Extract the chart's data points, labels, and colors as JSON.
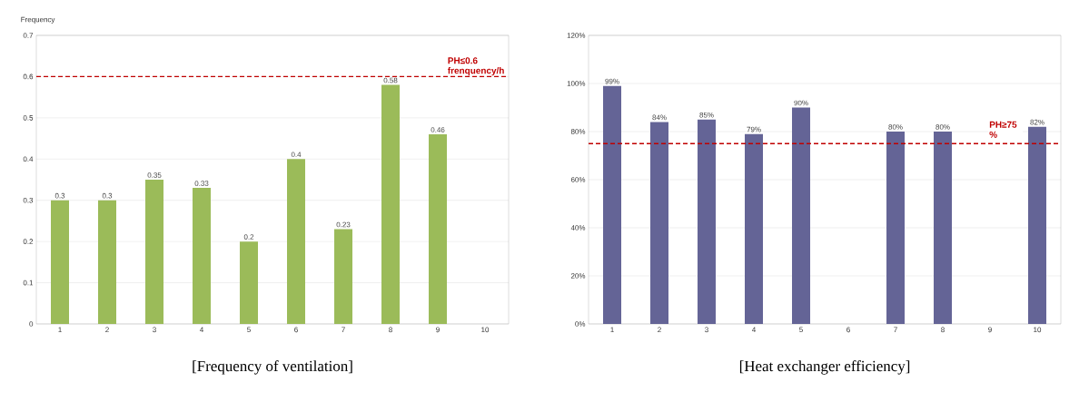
{
  "chart_data": [
    {
      "type": "bar",
      "title": "[Frequency of ventilation]",
      "ylabel": "Frequency",
      "categories": [
        "1",
        "2",
        "3",
        "4",
        "5",
        "6",
        "7",
        "8",
        "9",
        "10"
      ],
      "values": [
        0.3,
        0.3,
        0.35,
        0.33,
        0.2,
        0.4,
        0.23,
        0.58,
        0.46,
        null
      ],
      "color": "#9bbb59",
      "data_labels": true,
      "ylim": [
        0,
        0.7
      ],
      "yticks": [
        0,
        0.1,
        0.2,
        0.3,
        0.4,
        0.5,
        0.6,
        0.7
      ],
      "grid": "y",
      "ref_lines": [
        {
          "axis": "y",
          "value": 0.6,
          "label": "PH≤0.6 frenquency/h",
          "color": "#c00000",
          "line_style": "dashed"
        }
      ]
    },
    {
      "type": "bar",
      "title": "[Heat exchanger efficiency]",
      "categories": [
        "1",
        "2",
        "3",
        "4",
        "5",
        "6",
        "7",
        "8",
        "9",
        "10"
      ],
      "values": [
        99,
        84,
        85,
        79,
        90,
        null,
        80,
        80,
        null,
        82
      ],
      "value_labels": [
        "99%",
        "84%",
        "85%",
        "79%",
        "90%",
        null,
        "80%",
        "80%",
        null,
        "82%"
      ],
      "color": "#646496",
      "ylim": [
        0,
        120
      ],
      "yticks": [
        {
          "value": 0,
          "label": "0%"
        },
        {
          "value": 20,
          "label": "20%"
        },
        {
          "value": 40,
          "label": "40%"
        },
        {
          "value": 60,
          "label": "60%"
        },
        {
          "value": 80,
          "label": "80%"
        },
        {
          "value": 100,
          "label": "100%"
        },
        {
          "value": 120,
          "label": "120%"
        }
      ],
      "grid": "y",
      "ref_lines": [
        {
          "axis": "y",
          "value": 75,
          "label": "PH≥75 %",
          "color": "#c00000",
          "line_style": "dashed"
        }
      ]
    }
  ]
}
